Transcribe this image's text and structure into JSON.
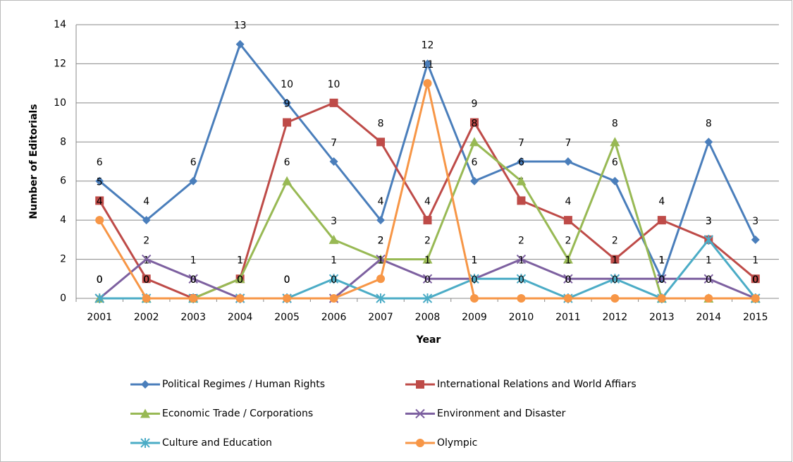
{
  "chart_data": {
    "type": "line",
    "x_label": "Year",
    "y_label": "Number of Editorials",
    "categories": [
      "2001",
      "2002",
      "2003",
      "2004",
      "2005",
      "2006",
      "2007",
      "2008",
      "2009",
      "2010",
      "2011",
      "2012",
      "2013",
      "2014",
      "2015"
    ],
    "ylim": [
      0,
      14
    ],
    "yticks": [
      0,
      2,
      4,
      6,
      8,
      10,
      12,
      14
    ],
    "grid": true,
    "legend": "bottom",
    "series": [
      {
        "name": "Political Regimes / Human Rights",
        "color": "#4a7ebb",
        "marker": "diamond",
        "values": [
          6,
          4,
          6,
          13,
          10,
          7,
          4,
          12,
          6,
          7,
          7,
          6,
          1,
          8,
          3
        ]
      },
      {
        "name": "International Relations and World Affiars",
        "color": "#be4b48",
        "marker": "square",
        "values": [
          5,
          1,
          0,
          1,
          9,
          10,
          8,
          4,
          9,
          5,
          4,
          2,
          4,
          3,
          1
        ]
      },
      {
        "name": "Economic Trade / Corporations",
        "color": "#98b954",
        "marker": "triangle",
        "values": [
          0,
          0,
          0,
          1,
          6,
          3,
          2,
          2,
          8,
          6,
          2,
          8,
          0,
          0,
          0
        ]
      },
      {
        "name": "Environment and Disaster",
        "color": "#7d60a0",
        "marker": "x",
        "values": [
          0,
          2,
          1,
          0,
          0,
          0,
          2,
          1,
          1,
          2,
          1,
          1,
          1,
          1,
          0
        ]
      },
      {
        "name": "Culture and Education",
        "color": "#4bacc6",
        "marker": "star",
        "values": [
          0,
          0,
          0,
          0,
          0,
          1,
          0,
          0,
          1,
          1,
          0,
          1,
          0,
          3,
          0
        ]
      },
      {
        "name": "Olympic",
        "color": "#f79646",
        "marker": "circle",
        "values": [
          4,
          0,
          0,
          0,
          0,
          0,
          1,
          11,
          0,
          0,
          0,
          0,
          0,
          0,
          0
        ]
      }
    ]
  }
}
